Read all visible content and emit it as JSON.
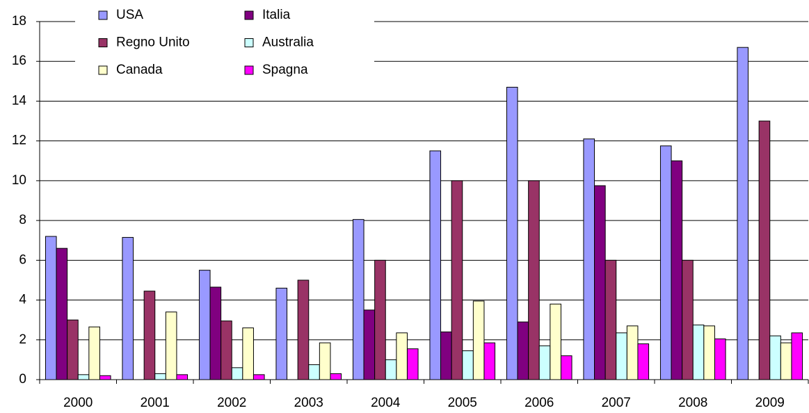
{
  "chart_data": {
    "type": "bar",
    "categories": [
      "2000",
      "2001",
      "2002",
      "2003",
      "2004",
      "2005",
      "2006",
      "2007",
      "2008",
      "2009"
    ],
    "series": [
      {
        "name": "USA",
        "color": "#9999ff",
        "values": [
          7.2,
          7.15,
          5.5,
          4.6,
          8.05,
          11.5,
          14.7,
          12.1,
          11.75,
          16.7
        ]
      },
      {
        "name": "Italia",
        "color": "#800080",
        "values": [
          6.6,
          null,
          4.65,
          null,
          3.5,
          2.4,
          2.9,
          9.75,
          11.0,
          null
        ]
      },
      {
        "name": "Regno Unito",
        "color": "#993366",
        "values": [
          3.0,
          4.45,
          2.95,
          5.0,
          6.0,
          10,
          10,
          6.0,
          6.0,
          13.0
        ]
      },
      {
        "name": "Australia",
        "color": "#ccffff",
        "values": [
          0.25,
          0.3,
          0.6,
          0.75,
          1.0,
          1.45,
          1.7,
          2.35,
          2.75,
          2.2
        ]
      },
      {
        "name": "Canada",
        "color": "#ffffcc",
        "values": [
          2.65,
          3.4,
          2.6,
          1.85,
          2.35,
          3.95,
          3.8,
          2.7,
          2.7,
          1.85
        ]
      },
      {
        "name": "Spagna",
        "color": "#ff00ff",
        "values": [
          0.2,
          0.25,
          0.25,
          0.3,
          1.55,
          1.85,
          1.2,
          1.8,
          2.05,
          2.35
        ]
      }
    ],
    "ylim": [
      0,
      18
    ],
    "yticks": [
      0,
      2,
      4,
      6,
      8,
      10,
      12,
      14,
      16,
      18
    ],
    "grid": true
  }
}
